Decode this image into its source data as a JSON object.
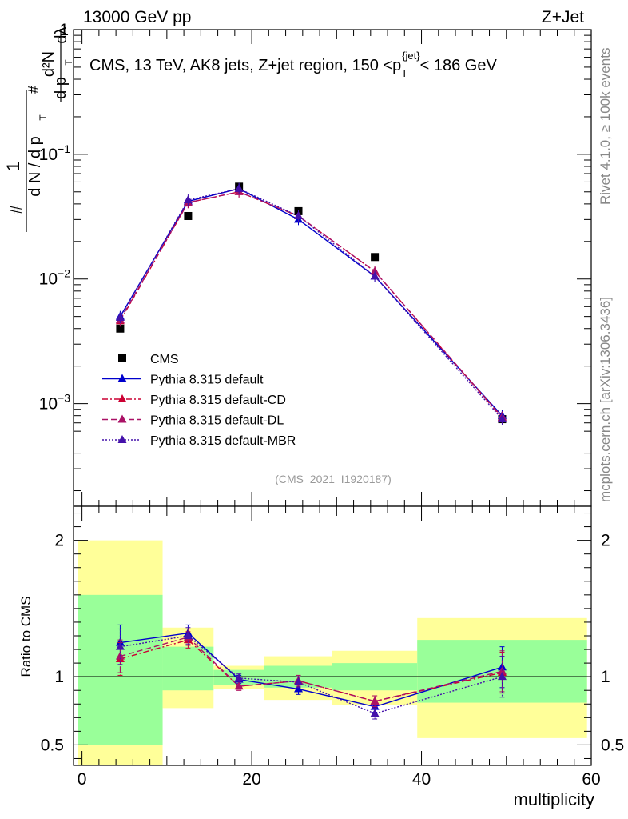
{
  "header": {
    "left": "13000 GeV pp",
    "right": "Z+Jet"
  },
  "side_labels": {
    "rivet": "Rivet 4.1.0, ≥ 100k events",
    "mcplots": "mcplots.cern.ch [arXiv:1306.3436]"
  },
  "colors": {
    "cms": "#000000",
    "default": "#0000cc",
    "cd": "#cc0033",
    "dl": "#aa1166",
    "mbr": "#4411aa",
    "band_yellow": "#ffff99",
    "band_green": "#99ff99",
    "side_text": "#888888"
  },
  "chart_data": [
    {
      "type": "line",
      "panel": "main",
      "title": "CMS, 13 TeV, AK8 jets, Z+jet region, 150 <p_T^{jet}< 186 GeV",
      "watermark": "(CMS_2021_I1920187)",
      "xlabel": "multiplicity",
      "ylabel_parts": [
        "#",
        "1",
        "d N / d p",
        "T",
        "#",
        "d p",
        "T",
        "d²N",
        "dλ"
      ],
      "xlim": [
        -1,
        60
      ],
      "ylim": [
        0.00015,
        1
      ],
      "yscale": "log",
      "yticks": [
        0.001,
        0.01,
        0.1,
        1
      ],
      "ytick_labels": [
        {
          "base": "10",
          "exp": "−3"
        },
        {
          "base": "10",
          "exp": "−2"
        },
        {
          "base": "10",
          "exp": "−1"
        },
        {
          "base": "1",
          "exp": ""
        }
      ],
      "x": [
        4.5,
        12.5,
        18.5,
        25.5,
        34.5,
        49.5
      ],
      "series": [
        {
          "name": "CMS",
          "key": "cms",
          "style": "marker",
          "values": [
            0.004,
            0.032,
            0.055,
            0.035,
            0.015,
            0.00075
          ]
        },
        {
          "name": "Pythia 8.315 default",
          "key": "default",
          "style": "solid",
          "values": [
            0.005,
            0.042,
            0.053,
            0.03,
            0.0105,
            0.0008
          ]
        },
        {
          "name": "Pythia 8.315 default-CD",
          "key": "cd",
          "style": "dashdot",
          "values": [
            0.0046,
            0.041,
            0.05,
            0.032,
            0.0115,
            0.00077
          ]
        },
        {
          "name": "Pythia 8.315 default-DL",
          "key": "dl",
          "style": "dashed",
          "values": [
            0.0047,
            0.041,
            0.05,
            0.032,
            0.0115,
            0.00078
          ]
        },
        {
          "name": "Pythia 8.315 default-MBR",
          "key": "mbr",
          "style": "dotted",
          "values": [
            0.0049,
            0.043,
            0.053,
            0.032,
            0.0105,
            0.00075
          ]
        }
      ],
      "legend_position": "lower-left"
    },
    {
      "type": "line",
      "panel": "ratio",
      "xlabel": "multiplicity",
      "ylabel": "Ratio to CMS",
      "xlim": [
        -1,
        60
      ],
      "ylim": [
        0.35,
        2.25
      ],
      "xticks": [
        0,
        20,
        40,
        60
      ],
      "xtick_labels": [
        "0",
        "20",
        "40",
        "60"
      ],
      "yticks": [
        0.5,
        1,
        2
      ],
      "ytick_labels": [
        "0.5",
        "1",
        "2"
      ],
      "bands": [
        {
          "x0": -0.5,
          "x1": 9.5,
          "yellow": [
            0.35,
            2.0
          ],
          "green": [
            0.5,
            1.6
          ]
        },
        {
          "x0": 9.5,
          "x1": 15.5,
          "yellow": [
            0.77,
            1.36
          ],
          "green": [
            0.9,
            1.22
          ]
        },
        {
          "x0": 15.5,
          "x1": 21.5,
          "yellow": [
            0.91,
            1.08
          ],
          "green": [
            0.94,
            1.05
          ]
        },
        {
          "x0": 21.5,
          "x1": 29.5,
          "yellow": [
            0.83,
            1.15
          ],
          "green": [
            0.92,
            1.08
          ]
        },
        {
          "x0": 29.5,
          "x1": 39.5,
          "yellow": [
            0.79,
            1.19
          ],
          "green": [
            0.9,
            1.1
          ]
        },
        {
          "x0": 39.5,
          "x1": 59.5,
          "yellow": [
            0.55,
            1.43
          ],
          "green": [
            0.81,
            1.27
          ]
        }
      ],
      "x": [
        4.5,
        12.5,
        18.5,
        25.5,
        34.5,
        49.5
      ],
      "series": [
        {
          "name": "Pythia 8.315 default",
          "key": "default",
          "style": "solid",
          "values": [
            1.25,
            1.32,
            0.98,
            0.91,
            0.78,
            1.07
          ],
          "err": [
            0.13,
            0.06,
            0.03,
            0.04,
            0.04,
            0.15
          ]
        },
        {
          "name": "Pythia 8.315 default-CD",
          "key": "cd",
          "style": "dashdot",
          "values": [
            1.13,
            1.27,
            0.93,
            0.97,
            0.82,
            1.03
          ],
          "err": [
            0.12,
            0.06,
            0.03,
            0.04,
            0.04,
            0.15
          ]
        },
        {
          "name": "Pythia 8.315 default-DL",
          "key": "dl",
          "style": "dashed",
          "values": [
            1.15,
            1.29,
            0.93,
            0.97,
            0.82,
            1.04
          ],
          "err": [
            0.12,
            0.06,
            0.03,
            0.04,
            0.04,
            0.15
          ]
        },
        {
          "name": "Pythia 8.315 default-MBR",
          "key": "mbr",
          "style": "dotted",
          "values": [
            1.22,
            1.3,
            0.99,
            0.96,
            0.73,
            1.0
          ],
          "err": [
            0.13,
            0.06,
            0.03,
            0.04,
            0.04,
            0.15
          ]
        }
      ]
    }
  ]
}
